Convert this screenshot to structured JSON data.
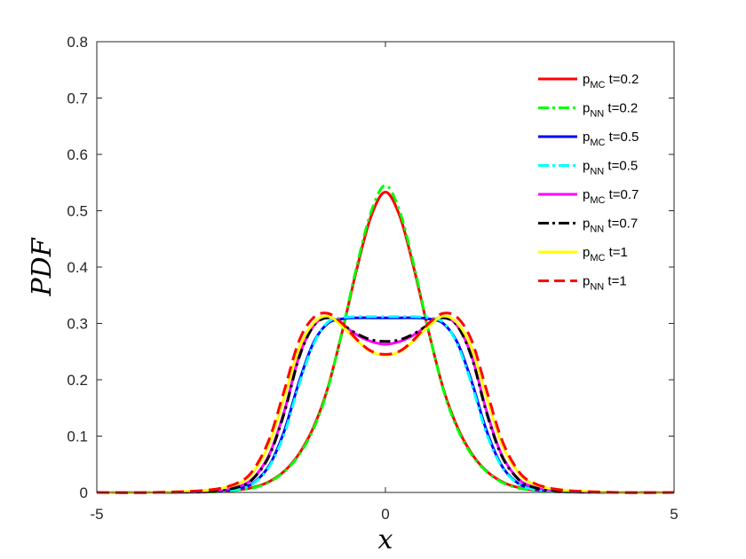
{
  "chart_data": {
    "type": "line",
    "xlabel": "x",
    "ylabel": "PDF",
    "xlim": [
      -5,
      5
    ],
    "ylim": [
      0,
      0.8
    ],
    "x_ticks": [
      "-5",
      "0",
      "5"
    ],
    "y_ticks": [
      "0",
      "0.1",
      "0.2",
      "0.3",
      "0.4",
      "0.5",
      "0.6",
      "0.7",
      "0.8"
    ],
    "grid": false,
    "legend_position": "top-right",
    "x": [
      -5.0,
      -4.0,
      -3.0,
      -2.5,
      -2.25,
      -2.0,
      -1.75,
      -1.5,
      -1.25,
      -1.0,
      -0.75,
      -0.5,
      -0.25,
      0.0,
      0.25,
      0.5,
      0.75,
      1.0,
      1.25,
      1.5,
      1.75,
      2.0,
      2.25,
      2.5,
      3.0,
      4.0,
      5.0
    ],
    "series": [
      {
        "p": "p",
        "sub": "MC",
        "suffix": " t=0.2",
        "color": "#ff0000",
        "dash": "solid",
        "values": [
          0,
          0,
          0.001,
          0.005,
          0.01,
          0.02,
          0.038,
          0.068,
          0.115,
          0.185,
          0.285,
          0.395,
          0.49,
          0.533,
          0.49,
          0.395,
          0.285,
          0.185,
          0.115,
          0.068,
          0.038,
          0.02,
          0.01,
          0.005,
          0.001,
          0,
          0
        ]
      },
      {
        "p": "p",
        "sub": "NN",
        "suffix": " t=0.2",
        "color": "#00ff00",
        "dash": "dashdot",
        "values": [
          0,
          0,
          0.001,
          0.005,
          0.009,
          0.019,
          0.037,
          0.066,
          0.112,
          0.183,
          0.286,
          0.4,
          0.498,
          0.545,
          0.498,
          0.4,
          0.286,
          0.183,
          0.112,
          0.066,
          0.037,
          0.019,
          0.009,
          0.005,
          0.001,
          0,
          0
        ]
      },
      {
        "p": "p",
        "sub": "MC",
        "suffix": " t=0.5",
        "color": "#0000ff",
        "dash": "solid",
        "values": [
          0,
          0,
          0.002,
          0.008,
          0.02,
          0.05,
          0.11,
          0.195,
          0.265,
          0.3,
          0.308,
          0.31,
          0.31,
          0.31,
          0.31,
          0.31,
          0.308,
          0.3,
          0.265,
          0.195,
          0.11,
          0.05,
          0.02,
          0.008,
          0.002,
          0,
          0
        ]
      },
      {
        "p": "p",
        "sub": "NN",
        "suffix": " t=0.5",
        "color": "#00ffff",
        "dash": "dashdot",
        "values": [
          0,
          0,
          0.002,
          0.007,
          0.019,
          0.048,
          0.105,
          0.19,
          0.262,
          0.302,
          0.31,
          0.312,
          0.312,
          0.312,
          0.312,
          0.312,
          0.31,
          0.302,
          0.262,
          0.19,
          0.105,
          0.048,
          0.019,
          0.007,
          0.002,
          0,
          0
        ]
      },
      {
        "p": "p",
        "sub": "MC",
        "suffix": " t=0.7",
        "color": "#ff00ff",
        "dash": "solid",
        "values": [
          0,
          0,
          0.003,
          0.012,
          0.03,
          0.07,
          0.145,
          0.24,
          0.295,
          0.312,
          0.298,
          0.28,
          0.268,
          0.263,
          0.268,
          0.28,
          0.298,
          0.312,
          0.295,
          0.24,
          0.145,
          0.07,
          0.03,
          0.012,
          0.003,
          0,
          0
        ]
      },
      {
        "p": "p",
        "sub": "NN",
        "suffix": " t=0.7",
        "color": "#000000",
        "dash": "dashdot",
        "values": [
          0,
          0,
          0.003,
          0.011,
          0.029,
          0.068,
          0.142,
          0.238,
          0.295,
          0.31,
          0.298,
          0.282,
          0.271,
          0.268,
          0.271,
          0.282,
          0.298,
          0.31,
          0.295,
          0.238,
          0.142,
          0.068,
          0.029,
          0.011,
          0.003,
          0,
          0
        ]
      },
      {
        "p": "p",
        "sub": "MC",
        "suffix": " t=1",
        "color": "#ffff00",
        "dash": "solid",
        "values": [
          0,
          0,
          0.005,
          0.018,
          0.042,
          0.09,
          0.17,
          0.255,
          0.3,
          0.313,
          0.295,
          0.27,
          0.25,
          0.244,
          0.25,
          0.27,
          0.295,
          0.313,
          0.3,
          0.255,
          0.17,
          0.09,
          0.042,
          0.018,
          0.005,
          0,
          0
        ]
      },
      {
        "p": "p",
        "sub": "NN",
        "suffix": " t=1",
        "color": "#ff0000",
        "dash": "dashed",
        "values": [
          0,
          0,
          0.005,
          0.02,
          0.046,
          0.098,
          0.182,
          0.268,
          0.31,
          0.318,
          0.3,
          0.272,
          0.251,
          0.245,
          0.251,
          0.272,
          0.3,
          0.318,
          0.31,
          0.268,
          0.182,
          0.098,
          0.046,
          0.02,
          0.005,
          0,
          0
        ]
      }
    ]
  }
}
